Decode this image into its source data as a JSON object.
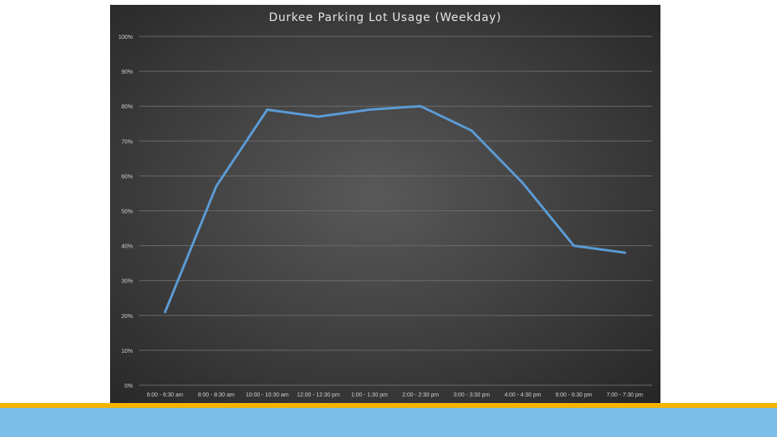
{
  "chart_data": {
    "type": "line",
    "title": "Durkee Parking Lot Usage (Weekday)",
    "xlabel": "",
    "ylabel": "",
    "ylim": [
      0,
      100
    ],
    "y_ticks": [
      "0%",
      "10%",
      "20%",
      "30%",
      "40%",
      "50%",
      "60%",
      "70%",
      "80%",
      "90%",
      "100%"
    ],
    "categories": [
      "6:00 - 6:30 am",
      "8:00 - 8:30 am",
      "10:00 - 10:30 am",
      "12:00 - 12:30 pm",
      "1:00 - 1:30 pm",
      "2:00 - 2:30 pm",
      "3:00 - 3:30 pm",
      "4:00 - 4:30 pm",
      "6:00 - 6:30 pm",
      "7:00 - 7:30 pm"
    ],
    "series": [
      {
        "values": [
          21,
          57,
          79,
          77,
          79,
          80,
          73,
          58,
          40,
          38
        ]
      }
    ],
    "grid": true,
    "legend": "none",
    "colors": {
      "line": "#5b9bd5",
      "grid": "#6a6a6a",
      "text": "#d0d0d0"
    }
  },
  "colors": {
    "accent_gold": "#f4b400",
    "accent_blue": "#7bbfe8"
  }
}
